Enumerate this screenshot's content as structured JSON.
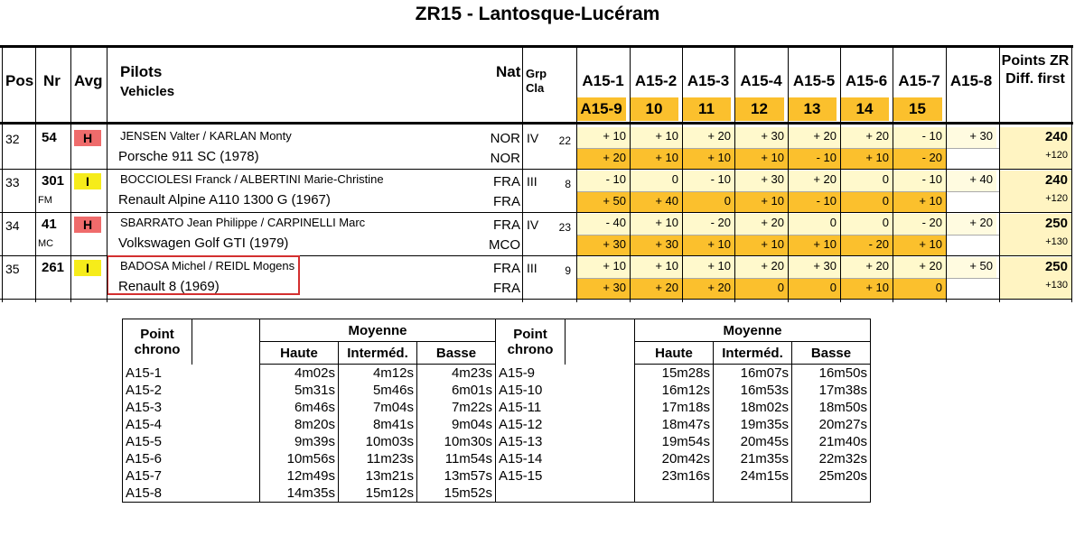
{
  "title": "ZR15 - Lantosque-Lucéram",
  "header": {
    "pos": "Pos",
    "nr": "Nr",
    "avg": "Avg",
    "pilots": "Pilots",
    "vehicles": "Vehicles",
    "nat": "Nat",
    "grp": "Grp",
    "cla": "Cla",
    "points_zr": "Points ZR",
    "diff_first": "Diff. first",
    "top_checkpoints": [
      "A15-1",
      "A15-2",
      "A15-3",
      "A15-4",
      "A15-5",
      "A15-6",
      "A15-7",
      "A15-8"
    ],
    "bottom_checkpoints": [
      "A15-9",
      "10",
      "11",
      "12",
      "13",
      "14",
      "15"
    ]
  },
  "rows": [
    {
      "pos": "32",
      "nr": "54",
      "sub": "",
      "avg": "H",
      "avg_color": "#ef6b6b",
      "crew": "JENSEN Valter / KARLAN Monty",
      "nat1": "NOR",
      "vehicle": "Porsche 911 SC (1978)",
      "nat2": "NOR",
      "grp": "IV",
      "cla": "22",
      "top": [
        "+ 10",
        "+ 10",
        "+ 20",
        "+ 30",
        "+ 20",
        "+ 20",
        "- 10",
        "+ 30"
      ],
      "bottom": [
        "+ 20",
        "+ 10",
        "+ 10",
        "+ 10",
        "- 10",
        "+ 10",
        "- 20"
      ],
      "points": "240",
      "diff": "+120"
    },
    {
      "pos": "33",
      "nr": "301",
      "sub": "FM",
      "avg": "I",
      "avg_color": "#f6ec1a",
      "crew": "BOCCIOLESI Franck / ALBERTINI Marie-Christine",
      "nat1": "FRA",
      "vehicle": "Renault Alpine A110 1300 G (1967)",
      "nat2": "FRA",
      "grp": "III",
      "cla": "8",
      "top": [
        "- 10",
        "0",
        "- 10",
        "+ 30",
        "+ 20",
        "0",
        "- 10",
        "+ 40"
      ],
      "bottom": [
        "+ 50",
        "+ 40",
        "0",
        "+ 10",
        "- 10",
        "0",
        "+ 10"
      ],
      "points": "240",
      "diff": "+120"
    },
    {
      "pos": "34",
      "nr": "41",
      "sub": "MC",
      "avg": "H",
      "avg_color": "#ef6b6b",
      "crew": "SBARRATO Jean Philippe / CARPINELLI Marc",
      "nat1": "FRA",
      "vehicle": "Volkswagen Golf GTI (1979)",
      "nat2": "MCO",
      "grp": "IV",
      "cla": "23",
      "top": [
        "- 40",
        "+ 10",
        "- 20",
        "+ 20",
        "0",
        "0",
        "- 20",
        "+ 20"
      ],
      "bottom": [
        "+ 30",
        "+ 30",
        "+ 10",
        "+ 10",
        "+ 10",
        "- 20",
        "+ 10"
      ],
      "points": "250",
      "diff": "+130"
    },
    {
      "pos": "35",
      "nr": "261",
      "sub": "",
      "avg": "I",
      "avg_color": "#f6ec1a",
      "crew": "BADOSA Michel / REIDL Mogens",
      "nat1": "FRA",
      "vehicle": "Renault 8 (1969)",
      "nat2": "FRA",
      "grp": "III",
      "cla": "9",
      "top": [
        "+ 10",
        "+ 10",
        "+ 10",
        "+ 20",
        "+ 30",
        "+ 20",
        "+ 20",
        "+ 50"
      ],
      "bottom": [
        "+ 30",
        "+ 20",
        "+ 20",
        "0",
        "0",
        "+ 10",
        "0"
      ],
      "points": "250",
      "diff": "+130"
    }
  ],
  "ref_table": {
    "point_chrono_1": "Point",
    "point_chrono_2": "chrono",
    "moyenne": "Moyenne",
    "haute": "Haute",
    "intermed": "Interméd.",
    "basse": "Basse",
    "left": [
      [
        "A15-1",
        "4m02s",
        "4m12s",
        "4m23s"
      ],
      [
        "A15-2",
        "5m31s",
        "5m46s",
        "6m01s"
      ],
      [
        "A15-3",
        "6m46s",
        "7m04s",
        "7m22s"
      ],
      [
        "A15-4",
        "8m20s",
        "8m41s",
        "9m04s"
      ],
      [
        "A15-5",
        "9m39s",
        "10m03s",
        "10m30s"
      ],
      [
        "A15-6",
        "10m56s",
        "11m23s",
        "11m54s"
      ],
      [
        "A15-7",
        "12m49s",
        "13m21s",
        "13m57s"
      ],
      [
        "A15-8",
        "14m35s",
        "15m12s",
        "15m52s"
      ]
    ],
    "right": [
      [
        "A15-9",
        "15m28s",
        "16m07s",
        "16m50s"
      ],
      [
        "A15-10",
        "16m12s",
        "16m53s",
        "17m38s"
      ],
      [
        "A15-11",
        "17m18s",
        "18m02s",
        "18m50s"
      ],
      [
        "A15-12",
        "18m47s",
        "19m35s",
        "20m27s"
      ],
      [
        "A15-13",
        "19m54s",
        "20m45s",
        "21m40s"
      ],
      [
        "A15-14",
        "20m42s",
        "21m35s",
        "22m32s"
      ],
      [
        "A15-15",
        "23m16s",
        "24m15s",
        "25m20s"
      ],
      [
        "",
        "",
        "",
        ""
      ]
    ]
  }
}
